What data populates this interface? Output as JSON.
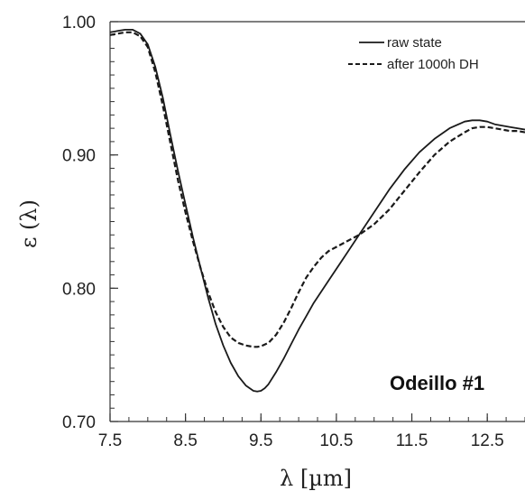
{
  "chart_data": {
    "type": "line",
    "xlabel": "λ [µm]",
    "ylabel": "ε (λ)",
    "xlim": [
      7.5,
      13.0
    ],
    "ylim": [
      0.7,
      1.0
    ],
    "x_ticks": [
      "7.5",
      "8.5",
      "9.5",
      "10.5",
      "11.5",
      "12.5"
    ],
    "x_tick_values": [
      7.5,
      8.5,
      9.5,
      10.5,
      11.5,
      12.5
    ],
    "y_ticks": [
      "0.70",
      "0.80",
      "0.90",
      "1.00"
    ],
    "y_tick_values": [
      0.7,
      0.8,
      0.9,
      1.0
    ],
    "grid": false,
    "legend_position": "top-right",
    "annotation": "Odeillo #1",
    "series": [
      {
        "name": "raw state",
        "style": "solid",
        "color": "#1a1a1a",
        "x": [
          7.5,
          7.6,
          7.7,
          7.8,
          7.9,
          8.0,
          8.1,
          8.2,
          8.3,
          8.4,
          8.5,
          8.6,
          8.7,
          8.8,
          8.9,
          9.0,
          9.1,
          9.2,
          9.3,
          9.4,
          9.45,
          9.5,
          9.55,
          9.6,
          9.7,
          9.8,
          9.9,
          10.0,
          10.1,
          10.2,
          10.4,
          10.6,
          10.8,
          11.0,
          11.2,
          11.4,
          11.6,
          11.8,
          12.0,
          12.2,
          12.3,
          12.4,
          12.5,
          12.6,
          12.7,
          12.8,
          12.9,
          13.0
        ],
        "y": [
          0.992,
          0.993,
          0.994,
          0.994,
          0.991,
          0.983,
          0.966,
          0.943,
          0.915,
          0.888,
          0.863,
          0.838,
          0.815,
          0.793,
          0.773,
          0.757,
          0.744,
          0.734,
          0.727,
          0.723,
          0.7225,
          0.723,
          0.725,
          0.728,
          0.737,
          0.747,
          0.758,
          0.769,
          0.779,
          0.789,
          0.806,
          0.823,
          0.84,
          0.857,
          0.874,
          0.889,
          0.902,
          0.912,
          0.92,
          0.925,
          0.926,
          0.926,
          0.925,
          0.923,
          0.922,
          0.921,
          0.92,
          0.919
        ]
      },
      {
        "name": "after 1000h DH",
        "style": "dashed",
        "color": "#1a1a1a",
        "x": [
          7.5,
          7.6,
          7.7,
          7.8,
          7.9,
          8.0,
          8.1,
          8.2,
          8.3,
          8.4,
          8.5,
          8.6,
          8.7,
          8.8,
          8.9,
          9.0,
          9.1,
          9.2,
          9.3,
          9.4,
          9.45,
          9.5,
          9.6,
          9.7,
          9.8,
          9.9,
          10.0,
          10.1,
          10.2,
          10.3,
          10.4,
          10.5,
          10.6,
          10.7,
          10.8,
          11.0,
          11.2,
          11.4,
          11.6,
          11.8,
          12.0,
          12.2,
          12.3,
          12.4,
          12.5,
          12.6,
          12.7,
          12.8,
          12.9,
          13.0
        ],
        "y": [
          0.99,
          0.991,
          0.992,
          0.992,
          0.989,
          0.981,
          0.962,
          0.937,
          0.909,
          0.881,
          0.857,
          0.835,
          0.815,
          0.797,
          0.782,
          0.771,
          0.763,
          0.759,
          0.757,
          0.756,
          0.756,
          0.7565,
          0.759,
          0.765,
          0.774,
          0.785,
          0.797,
          0.808,
          0.816,
          0.823,
          0.828,
          0.831,
          0.834,
          0.837,
          0.84,
          0.848,
          0.859,
          0.873,
          0.887,
          0.9,
          0.91,
          0.917,
          0.92,
          0.921,
          0.921,
          0.92,
          0.919,
          0.918,
          0.918,
          0.917
        ]
      }
    ]
  }
}
